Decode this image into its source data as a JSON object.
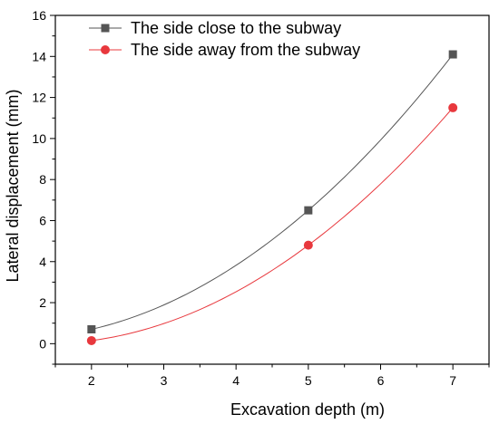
{
  "chart_data": {
    "type": "line",
    "xlabel": "Excavation depth (m)",
    "ylabel": "Lateral displacement (mm)",
    "xlim": [
      1.5,
      7.5
    ],
    "ylim": [
      -1,
      16
    ],
    "x_ticks": [
      2,
      3,
      4,
      5,
      6,
      7
    ],
    "y_ticks": [
      0,
      2,
      4,
      6,
      8,
      10,
      12,
      14,
      16
    ],
    "x_minor_step": 0.5,
    "y_minor_step": 1,
    "grid": false,
    "legend_position": "top-left",
    "series": [
      {
        "name": "The side close to the subway",
        "x": [
          2,
          5,
          7
        ],
        "y": [
          0.7,
          6.5,
          14.1
        ],
        "color": "#555555",
        "marker": "square"
      },
      {
        "name": "The side away from the subway",
        "x": [
          2,
          5,
          7
        ],
        "y": [
          0.15,
          4.8,
          11.5
        ],
        "color": "#e8383d",
        "marker": "circle"
      }
    ]
  }
}
